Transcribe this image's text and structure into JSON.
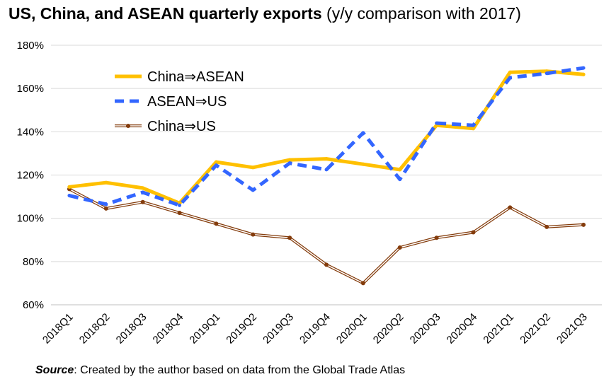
{
  "header": {
    "title_bold": "US, China, and ASEAN quarterly exports",
    "title_normal": "(y/y comparison with 2017)"
  },
  "footer": {
    "source_label": "Source",
    "source_text": ": Created by the author based on data from the Global Trade Atlas"
  },
  "chart_data": {
    "type": "line",
    "title": "US, China, and ASEAN quarterly exports (y/y comparison with 2017)",
    "xlabel": "",
    "ylabel": "",
    "ylim": [
      60,
      180
    ],
    "ytick_step": 20,
    "y_unit": "%",
    "grid": true,
    "legend_position": "top-left",
    "categories": [
      "2018Q1",
      "2018Q2",
      "2018Q3",
      "2018Q4",
      "2019Q1",
      "2019Q2",
      "2019Q3",
      "2019Q4",
      "2020Q1",
      "2020Q2",
      "2020Q3",
      "2020Q4",
      "2021Q1",
      "2021Q2",
      "2021Q3"
    ],
    "series": [
      {
        "name": "China⇒ASEAN",
        "color": "#FFC000",
        "style": "solid-thick",
        "values": [
          114.5,
          116.5,
          114,
          107,
          126,
          123.5,
          127,
          127.5,
          125,
          122.5,
          143,
          141.5,
          167.5,
          168,
          166.5
        ]
      },
      {
        "name": "ASEAN⇒US",
        "color": "#3366FF",
        "style": "dashed",
        "values": [
          110.5,
          106.5,
          112,
          106,
          124.5,
          113,
          125.5,
          122.5,
          139.5,
          118,
          144,
          143,
          165,
          167,
          169.5
        ]
      },
      {
        "name": "China⇒US",
        "color": "#843C0C",
        "style": "double",
        "values": [
          113.5,
          104.5,
          107.5,
          102.5,
          97.5,
          92.5,
          91,
          78.5,
          70,
          86.5,
          91,
          93.5,
          105,
          96,
          97
        ]
      }
    ]
  }
}
